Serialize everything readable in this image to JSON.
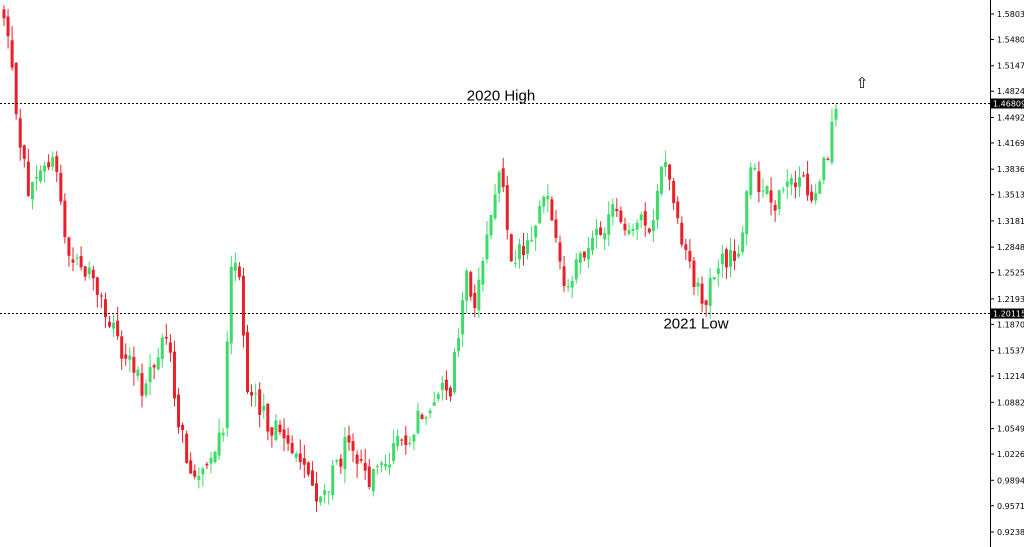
{
  "chart_data": {
    "type": "candlestick",
    "title": "",
    "xlabel": "",
    "ylabel": "",
    "ylim": [
      0.91,
      1.588
    ],
    "grid": false,
    "y_ticks": [
      "1.58030",
      "1.54800",
      "1.51475",
      "1.48245",
      "1.44920",
      "1.41690",
      "1.38365",
      "1.35135",
      "1.31810",
      "1.28485",
      "1.25255",
      "1.21930",
      "1.18700",
      "1.15375",
      "1.12145",
      "1.08820",
      "1.05495",
      "1.02265",
      "0.98940",
      "0.95710",
      "0.92385"
    ],
    "levels": [
      {
        "value": 1.46809,
        "label": "1.46809",
        "annotation": "2020 High"
      },
      {
        "value": 1.20115,
        "label": "1.20115",
        "annotation": "2021 Low"
      }
    ],
    "signal": {
      "direction": "up",
      "glyph": "⇧"
    },
    "colors": {
      "up": "#3ddc6a",
      "down": "#e8202a",
      "level_line": "#000000",
      "tag_bg": "#000000"
    },
    "key_points": [
      {
        "i": 0,
        "price": 1.575
      },
      {
        "i": 6,
        "price": 1.35
      },
      {
        "i": 12,
        "price": 1.4
      },
      {
        "i": 16,
        "price": 1.28
      },
      {
        "i": 22,
        "price": 1.245
      },
      {
        "i": 28,
        "price": 1.16
      },
      {
        "i": 34,
        "price": 1.11
      },
      {
        "i": 40,
        "price": 1.17
      },
      {
        "i": 43,
        "price": 1.07
      },
      {
        "i": 46,
        "price": 0.99
      },
      {
        "i": 49,
        "price": 1.01
      },
      {
        "i": 54,
        "price": 1.06
      },
      {
        "i": 56,
        "price": 1.27
      },
      {
        "i": 58,
        "price": 1.26
      },
      {
        "i": 60,
        "price": 1.1
      },
      {
        "i": 64,
        "price": 1.07
      },
      {
        "i": 72,
        "price": 1.03
      },
      {
        "i": 78,
        "price": 0.96
      },
      {
        "i": 84,
        "price": 1.03
      },
      {
        "i": 90,
        "price": 0.99
      },
      {
        "i": 100,
        "price": 1.05
      },
      {
        "i": 106,
        "price": 1.1
      },
      {
        "i": 110,
        "price": 1.1
      },
      {
        "i": 114,
        "price": 1.25
      },
      {
        "i": 116,
        "price": 1.2
      },
      {
        "i": 120,
        "price": 1.34
      },
      {
        "i": 122,
        "price": 1.39
      },
      {
        "i": 125,
        "price": 1.26
      },
      {
        "i": 130,
        "price": 1.3
      },
      {
        "i": 134,
        "price": 1.36
      },
      {
        "i": 136,
        "price": 1.29
      },
      {
        "i": 138,
        "price": 1.24
      },
      {
        "i": 143,
        "price": 1.27
      },
      {
        "i": 150,
        "price": 1.33
      },
      {
        "i": 156,
        "price": 1.31
      },
      {
        "i": 160,
        "price": 1.32
      },
      {
        "i": 162,
        "price": 1.4
      },
      {
        "i": 164,
        "price": 1.37
      },
      {
        "i": 168,
        "price": 1.28
      },
      {
        "i": 172,
        "price": 1.21
      },
      {
        "i": 176,
        "price": 1.26
      },
      {
        "i": 181,
        "price": 1.28
      },
      {
        "i": 184,
        "price": 1.38
      },
      {
        "i": 190,
        "price": 1.34
      },
      {
        "i": 196,
        "price": 1.37
      },
      {
        "i": 200,
        "price": 1.35
      },
      {
        "i": 203,
        "price": 1.41
      },
      {
        "i": 205,
        "price": 1.46
      }
    ]
  }
}
